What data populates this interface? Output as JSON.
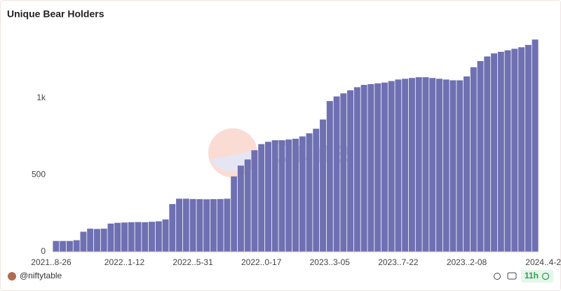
{
  "chart_data": {
    "type": "bar",
    "title": "Unique Bear Holders",
    "categories": [
      "2021..8-26",
      null,
      null,
      null,
      null,
      null,
      null,
      null,
      null,
      null,
      "2022..1-12",
      null,
      null,
      null,
      null,
      null,
      null,
      null,
      null,
      null,
      "2022..5-31",
      null,
      null,
      null,
      null,
      null,
      null,
      null,
      null,
      null,
      "2022..0-17",
      null,
      null,
      null,
      null,
      null,
      null,
      null,
      null,
      null,
      "2023..3-05",
      null,
      null,
      null,
      null,
      null,
      null,
      null,
      null,
      null,
      "2023..7-22",
      null,
      null,
      null,
      null,
      null,
      null,
      null,
      null,
      null,
      "2023..2-08",
      null,
      null,
      null,
      null,
      null,
      null,
      null,
      null,
      null,
      "2024..4-2"
    ],
    "values": [
      70,
      70,
      70,
      75,
      130,
      150,
      148,
      150,
      183,
      188,
      190,
      192,
      193,
      192,
      195,
      198,
      210,
      310,
      345,
      345,
      343,
      342,
      341,
      342,
      343,
      345,
      490,
      560,
      600,
      660,
      700,
      715,
      725,
      725,
      730,
      735,
      750,
      770,
      800,
      860,
      980,
      1010,
      1030,
      1050,
      1070,
      1085,
      1090,
      1095,
      1100,
      1110,
      1120,
      1125,
      1130,
      1135,
      1135,
      1130,
      1125,
      1120,
      1115,
      1115,
      1140,
      1200,
      1240,
      1270,
      1290,
      1300,
      1310,
      1320,
      1330,
      1345,
      1380
    ],
    "color": "#6f70b2",
    "ylim": [
      0,
      1400
    ],
    "yticks": [
      0,
      500,
      {
        "value": 1000,
        "label": "1k"
      }
    ],
    "grid": false,
    "watermark": "Dune"
  },
  "footer": {
    "author": "@niftytable",
    "age": "11h"
  }
}
